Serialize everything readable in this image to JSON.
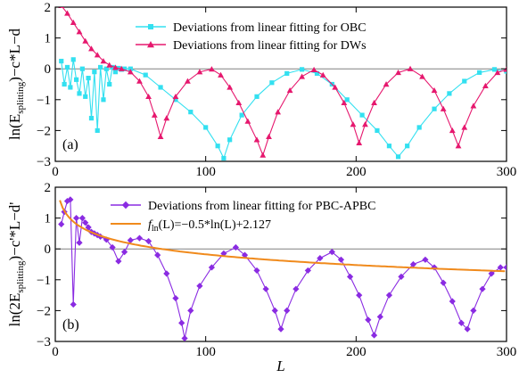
{
  "colors": {
    "obc": "#33e0f0",
    "dw": "#e6186e",
    "pbc": "#8a2be2",
    "fit": "#f08a1c",
    "zero": "#808080"
  },
  "chart_data": [
    {
      "type": "line",
      "panel": "(a)",
      "xlim": [
        0,
        300
      ],
      "ylim": [
        -3,
        2
      ],
      "xticks": [
        "0",
        "100",
        "200",
        "300"
      ],
      "yticks": [
        "2",
        "1",
        "0",
        "-1",
        "-2",
        "-3"
      ],
      "ylabel_main": "ln(E",
      "ylabel_sub": "splitting",
      "ylabel_tail": ")−c*L−d",
      "legend_position": "top-right",
      "series": [
        {
          "name": "Deviations from linear fitting for OBC",
          "marker": "square",
          "points": [
            [
              4,
              0.25
            ],
            [
              6,
              -0.5
            ],
            [
              8,
              0.05
            ],
            [
              10,
              -0.6
            ],
            [
              12,
              0.3
            ],
            [
              14,
              -0.35
            ],
            [
              16,
              -0.8
            ],
            [
              18,
              0.0
            ],
            [
              20,
              -0.9
            ],
            [
              22,
              -0.3
            ],
            [
              24,
              -1.6
            ],
            [
              26,
              -0.1
            ],
            [
              28,
              -2.0
            ],
            [
              30,
              0.05
            ],
            [
              32,
              -1.0
            ],
            [
              34,
              0.0
            ],
            [
              36,
              -0.5
            ],
            [
              38,
              0.05
            ],
            [
              40,
              -0.1
            ],
            [
              42,
              0.02
            ],
            [
              44,
              -0.02
            ],
            [
              46,
              0.0
            ],
            [
              50,
              0.0
            ],
            [
              60,
              -0.2
            ],
            [
              70,
              -0.6
            ],
            [
              80,
              -1.0
            ],
            [
              90,
              -1.4
            ],
            [
              100,
              -1.9
            ],
            [
              108,
              -2.5
            ],
            [
              112,
              -2.9
            ],
            [
              116,
              -2.3
            ],
            [
              124,
              -1.5
            ],
            [
              134,
              -0.9
            ],
            [
              144,
              -0.45
            ],
            [
              154,
              -0.15
            ],
            [
              164,
              -0.02
            ],
            [
              174,
              -0.15
            ],
            [
              184,
              -0.5
            ],
            [
              194,
              -1.0
            ],
            [
              204,
              -1.5
            ],
            [
              214,
              -2.0
            ],
            [
              222,
              -2.5
            ],
            [
              228,
              -2.85
            ],
            [
              234,
              -2.5
            ],
            [
              242,
              -1.9
            ],
            [
              252,
              -1.3
            ],
            [
              262,
              -0.8
            ],
            [
              272,
              -0.4
            ],
            [
              282,
              -0.12
            ],
            [
              292,
              -0.02
            ],
            [
              300,
              -0.08
            ]
          ]
        },
        {
          "name": "Deviations from linear fitting for DWs",
          "marker": "triangle",
          "points": [
            [
              4,
              2.05
            ],
            [
              8,
              1.8
            ],
            [
              12,
              1.5
            ],
            [
              16,
              1.2
            ],
            [
              20,
              0.9
            ],
            [
              24,
              0.65
            ],
            [
              28,
              0.45
            ],
            [
              32,
              0.25
            ],
            [
              36,
              0.12
            ],
            [
              40,
              0.04
            ],
            [
              44,
              0.0
            ],
            [
              50,
              -0.1
            ],
            [
              56,
              -0.4
            ],
            [
              62,
              -0.9
            ],
            [
              66,
              -1.5
            ],
            [
              70,
              -2.2
            ],
            [
              74,
              -1.6
            ],
            [
              80,
              -0.9
            ],
            [
              88,
              -0.4
            ],
            [
              96,
              -0.1
            ],
            [
              104,
              -0.01
            ],
            [
              110,
              -0.2
            ],
            [
              116,
              -0.6
            ],
            [
              122,
              -1.1
            ],
            [
              128,
              -1.7
            ],
            [
              134,
              -2.3
            ],
            [
              138,
              -2.8
            ],
            [
              142,
              -2.2
            ],
            [
              148,
              -1.4
            ],
            [
              156,
              -0.7
            ],
            [
              164,
              -0.25
            ],
            [
              172,
              -0.03
            ],
            [
              178,
              -0.2
            ],
            [
              186,
              -0.6
            ],
            [
              192,
              -1.1
            ],
            [
              198,
              -1.8
            ],
            [
              202,
              -2.4
            ],
            [
              206,
              -1.8
            ],
            [
              212,
              -1.1
            ],
            [
              220,
              -0.5
            ],
            [
              228,
              -0.12
            ],
            [
              236,
              0.0
            ],
            [
              244,
              -0.25
            ],
            [
              252,
              -0.7
            ],
            [
              258,
              -1.3
            ],
            [
              264,
              -2.0
            ],
            [
              268,
              -2.5
            ],
            [
              272,
              -1.9
            ],
            [
              278,
              -1.2
            ],
            [
              286,
              -0.55
            ],
            [
              294,
              -0.12
            ],
            [
              300,
              -0.02
            ]
          ]
        }
      ]
    },
    {
      "type": "line",
      "panel": "(b)",
      "xlim": [
        0,
        300
      ],
      "ylim": [
        -3,
        2
      ],
      "xticks": [
        "0",
        "100",
        "200",
        "300"
      ],
      "yticks": [
        "2",
        "1",
        "0",
        "-1",
        "-2",
        "-3"
      ],
      "xlabel": "L",
      "ylabel_main": "ln(2E",
      "ylabel_sub": "splitting",
      "ylabel_tail": ")−c'*L−d'",
      "legend_position": "top-right",
      "series": [
        {
          "name": "Deviations from linear fitting for PBC-APBC",
          "marker": "diamond",
          "points": [
            [
              4,
              0.8
            ],
            [
              6,
              1.2
            ],
            [
              8,
              1.55
            ],
            [
              10,
              1.6
            ],
            [
              12,
              -1.8
            ],
            [
              14,
              1.0
            ],
            [
              16,
              0.2
            ],
            [
              18,
              1.0
            ],
            [
              20,
              0.85
            ],
            [
              22,
              0.7
            ],
            [
              24,
              0.55
            ],
            [
              26,
              0.5
            ],
            [
              28,
              0.45
            ],
            [
              30,
              0.4
            ],
            [
              34,
              0.3
            ],
            [
              38,
              0.05
            ],
            [
              42,
              -0.4
            ],
            [
              46,
              -0.1
            ],
            [
              50,
              0.28
            ],
            [
              56,
              0.35
            ],
            [
              62,
              0.25
            ],
            [
              68,
              -0.2
            ],
            [
              74,
              -0.8
            ],
            [
              80,
              -1.6
            ],
            [
              84,
              -2.4
            ],
            [
              86,
              -2.9
            ],
            [
              90,
              -2.0
            ],
            [
              96,
              -1.2
            ],
            [
              104,
              -0.6
            ],
            [
              112,
              -0.15
            ],
            [
              120,
              0.05
            ],
            [
              126,
              -0.2
            ],
            [
              134,
              -0.7
            ],
            [
              140,
              -1.3
            ],
            [
              146,
              -2.0
            ],
            [
              150,
              -2.6
            ],
            [
              154,
              -2.0
            ],
            [
              160,
              -1.3
            ],
            [
              168,
              -0.7
            ],
            [
              176,
              -0.3
            ],
            [
              184,
              -0.1
            ],
            [
              190,
              -0.35
            ],
            [
              196,
              -0.9
            ],
            [
              202,
              -1.5
            ],
            [
              208,
              -2.3
            ],
            [
              212,
              -2.8
            ],
            [
              216,
              -2.2
            ],
            [
              222,
              -1.5
            ],
            [
              230,
              -0.9
            ],
            [
              238,
              -0.5
            ],
            [
              246,
              -0.35
            ],
            [
              252,
              -0.6
            ],
            [
              258,
              -1.1
            ],
            [
              264,
              -1.7
            ],
            [
              270,
              -2.4
            ],
            [
              274,
              -2.6
            ],
            [
              278,
              -2.0
            ],
            [
              284,
              -1.3
            ],
            [
              290,
              -0.8
            ],
            [
              296,
              -0.6
            ],
            [
              300,
              -0.6
            ]
          ]
        },
        {
          "name_main": "f",
          "name_sub": "ln",
          "name_tail": "(L)=−0.5*ln(L)+2.127",
          "curve": "fit",
          "coefficient": -0.5,
          "intercept": 2.127
        }
      ]
    }
  ]
}
